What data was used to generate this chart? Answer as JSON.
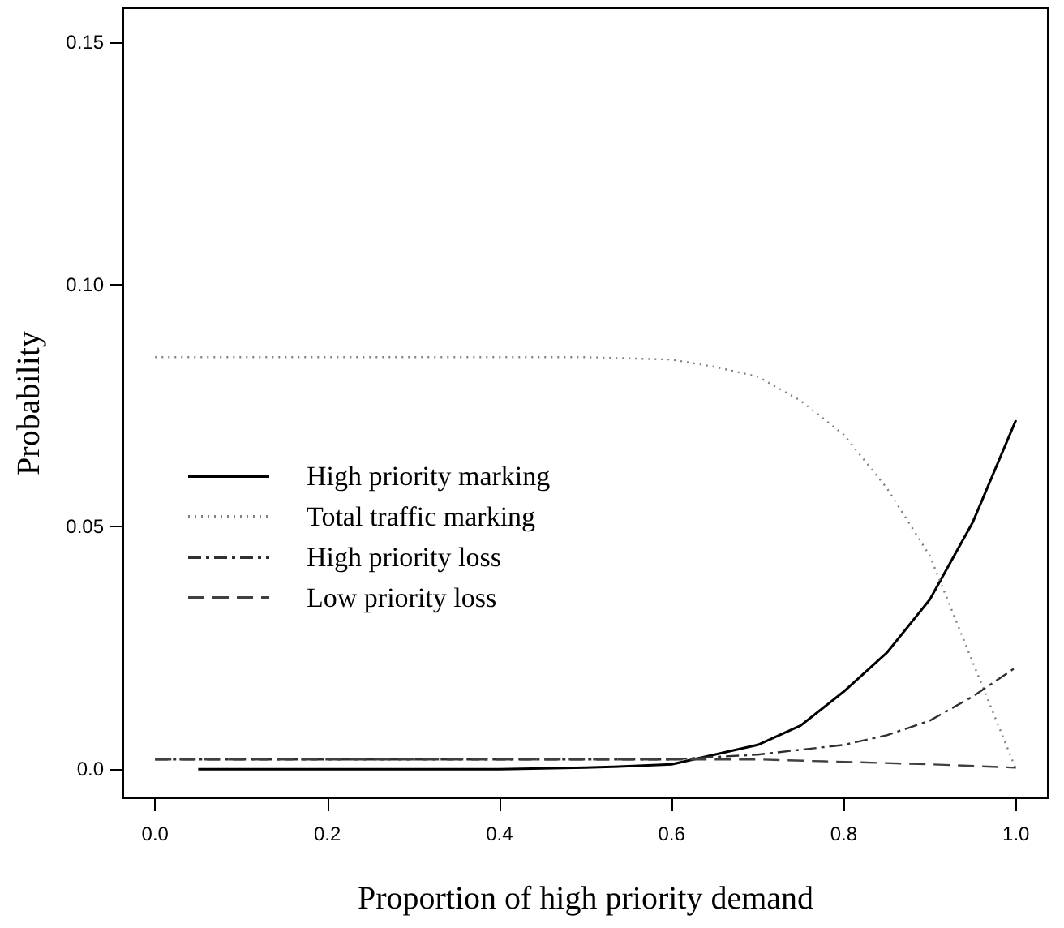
{
  "chart_data": {
    "type": "line",
    "xlabel": "Proportion of high priority demand",
    "ylabel": "Probability",
    "xlim": [
      -0.037,
      1.037
    ],
    "ylim": [
      -0.006,
      0.157
    ],
    "xticks": [
      {
        "value": 0,
        "label": "0.0"
      },
      0.2,
      0.4,
      0.6,
      0.8,
      {
        "value": 1,
        "label": "1.0"
      }
    ],
    "yticks": [
      {
        "value": 0,
        "label": "0.0"
      },
      {
        "value": 0.05,
        "label": "0.05"
      },
      {
        "value": 0.1,
        "label": "0.10"
      },
      {
        "value": 0.15,
        "label": "0.15"
      }
    ],
    "grid": false,
    "legend": "left",
    "marker": "none",
    "series": [
      {
        "name": "High priority marking",
        "color": "#000000",
        "line_style": "solid",
        "x": [
          0.05,
          0.2,
          0.4,
          0.5,
          0.55,
          0.6,
          0.65,
          0.7,
          0.75,
          0.8,
          0.85,
          0.9,
          0.95,
          1.0
        ],
        "values": [
          0.0,
          0.0,
          0.0,
          0.0003,
          0.0006,
          0.001,
          0.003,
          0.005,
          0.009,
          0.016,
          0.024,
          0.035,
          0.051,
          0.072
        ]
      },
      {
        "name": "Total traffic marking",
        "color": "#808080",
        "line_style": "dotted",
        "x": [
          0.0,
          0.2,
          0.4,
          0.5,
          0.6,
          0.65,
          0.7,
          0.75,
          0.8,
          0.85,
          0.9,
          0.95,
          1.0
        ],
        "values": [
          0.085,
          0.085,
          0.085,
          0.085,
          0.0845,
          0.083,
          0.081,
          0.076,
          0.069,
          0.058,
          0.044,
          0.022,
          0.0
        ]
      },
      {
        "name": "High priority loss",
        "color": "#303030",
        "line_style": "dashdot",
        "x": [
          0.0,
          0.2,
          0.4,
          0.6,
          0.65,
          0.7,
          0.75,
          0.8,
          0.85,
          0.9,
          0.95,
          1.0
        ],
        "values": [
          0.002,
          0.002,
          0.002,
          0.002,
          0.0025,
          0.003,
          0.004,
          0.005,
          0.007,
          0.01,
          0.015,
          0.021
        ]
      },
      {
        "name": "Low priority loss",
        "color": "#404040",
        "line_style": "dashed",
        "x": [
          0.0,
          0.2,
          0.4,
          0.6,
          0.7,
          0.8,
          0.9,
          1.0
        ],
        "values": [
          0.002,
          0.002,
          0.002,
          0.002,
          0.002,
          0.0015,
          0.001,
          0.0003
        ]
      }
    ]
  }
}
